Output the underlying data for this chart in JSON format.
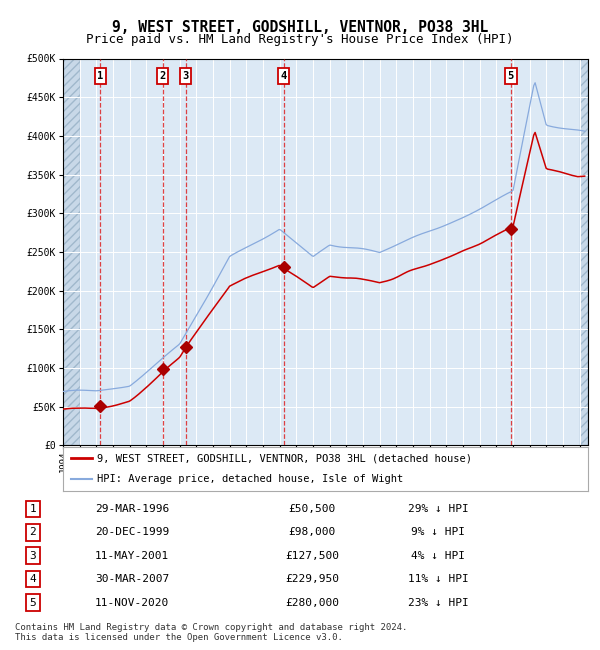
{
  "title": "9, WEST STREET, GODSHILL, VENTNOR, PO38 3HL",
  "subtitle": "Price paid vs. HM Land Registry's House Price Index (HPI)",
  "ylim": [
    0,
    500000
  ],
  "yticks": [
    0,
    50000,
    100000,
    150000,
    200000,
    250000,
    300000,
    350000,
    400000,
    450000,
    500000
  ],
  "xlim_start": 1994.0,
  "xlim_end": 2025.5,
  "background_color": "#dce9f5",
  "grid_color": "#ffffff",
  "sale_dates": [
    1996.24,
    1999.97,
    2001.36,
    2007.24,
    2020.87
  ],
  "sale_prices": [
    50500,
    98000,
    127500,
    229950,
    280000
  ],
  "sale_labels": [
    "1",
    "2",
    "3",
    "4",
    "5"
  ],
  "sale_line_color": "#cc0000",
  "sale_dot_color": "#aa0000",
  "hpi_line_color": "#88aadd",
  "legend_entries": [
    "9, WEST STREET, GODSHILL, VENTNOR, PO38 3HL (detached house)",
    "HPI: Average price, detached house, Isle of Wight"
  ],
  "table_rows": [
    [
      "1",
      "29-MAR-1996",
      "£50,500",
      "29% ↓ HPI"
    ],
    [
      "2",
      "20-DEC-1999",
      "£98,000",
      "9% ↓ HPI"
    ],
    [
      "3",
      "11-MAY-2001",
      "£127,500",
      "4% ↓ HPI"
    ],
    [
      "4",
      "30-MAR-2007",
      "£229,950",
      "11% ↓ HPI"
    ],
    [
      "5",
      "11-NOV-2020",
      "£280,000",
      "23% ↓ HPI"
    ]
  ],
  "footer": "Contains HM Land Registry data © Crown copyright and database right 2024.\nThis data is licensed under the Open Government Licence v3.0.",
  "title_fontsize": 10.5,
  "subtitle_fontsize": 9,
  "axis_fontsize": 7.5
}
